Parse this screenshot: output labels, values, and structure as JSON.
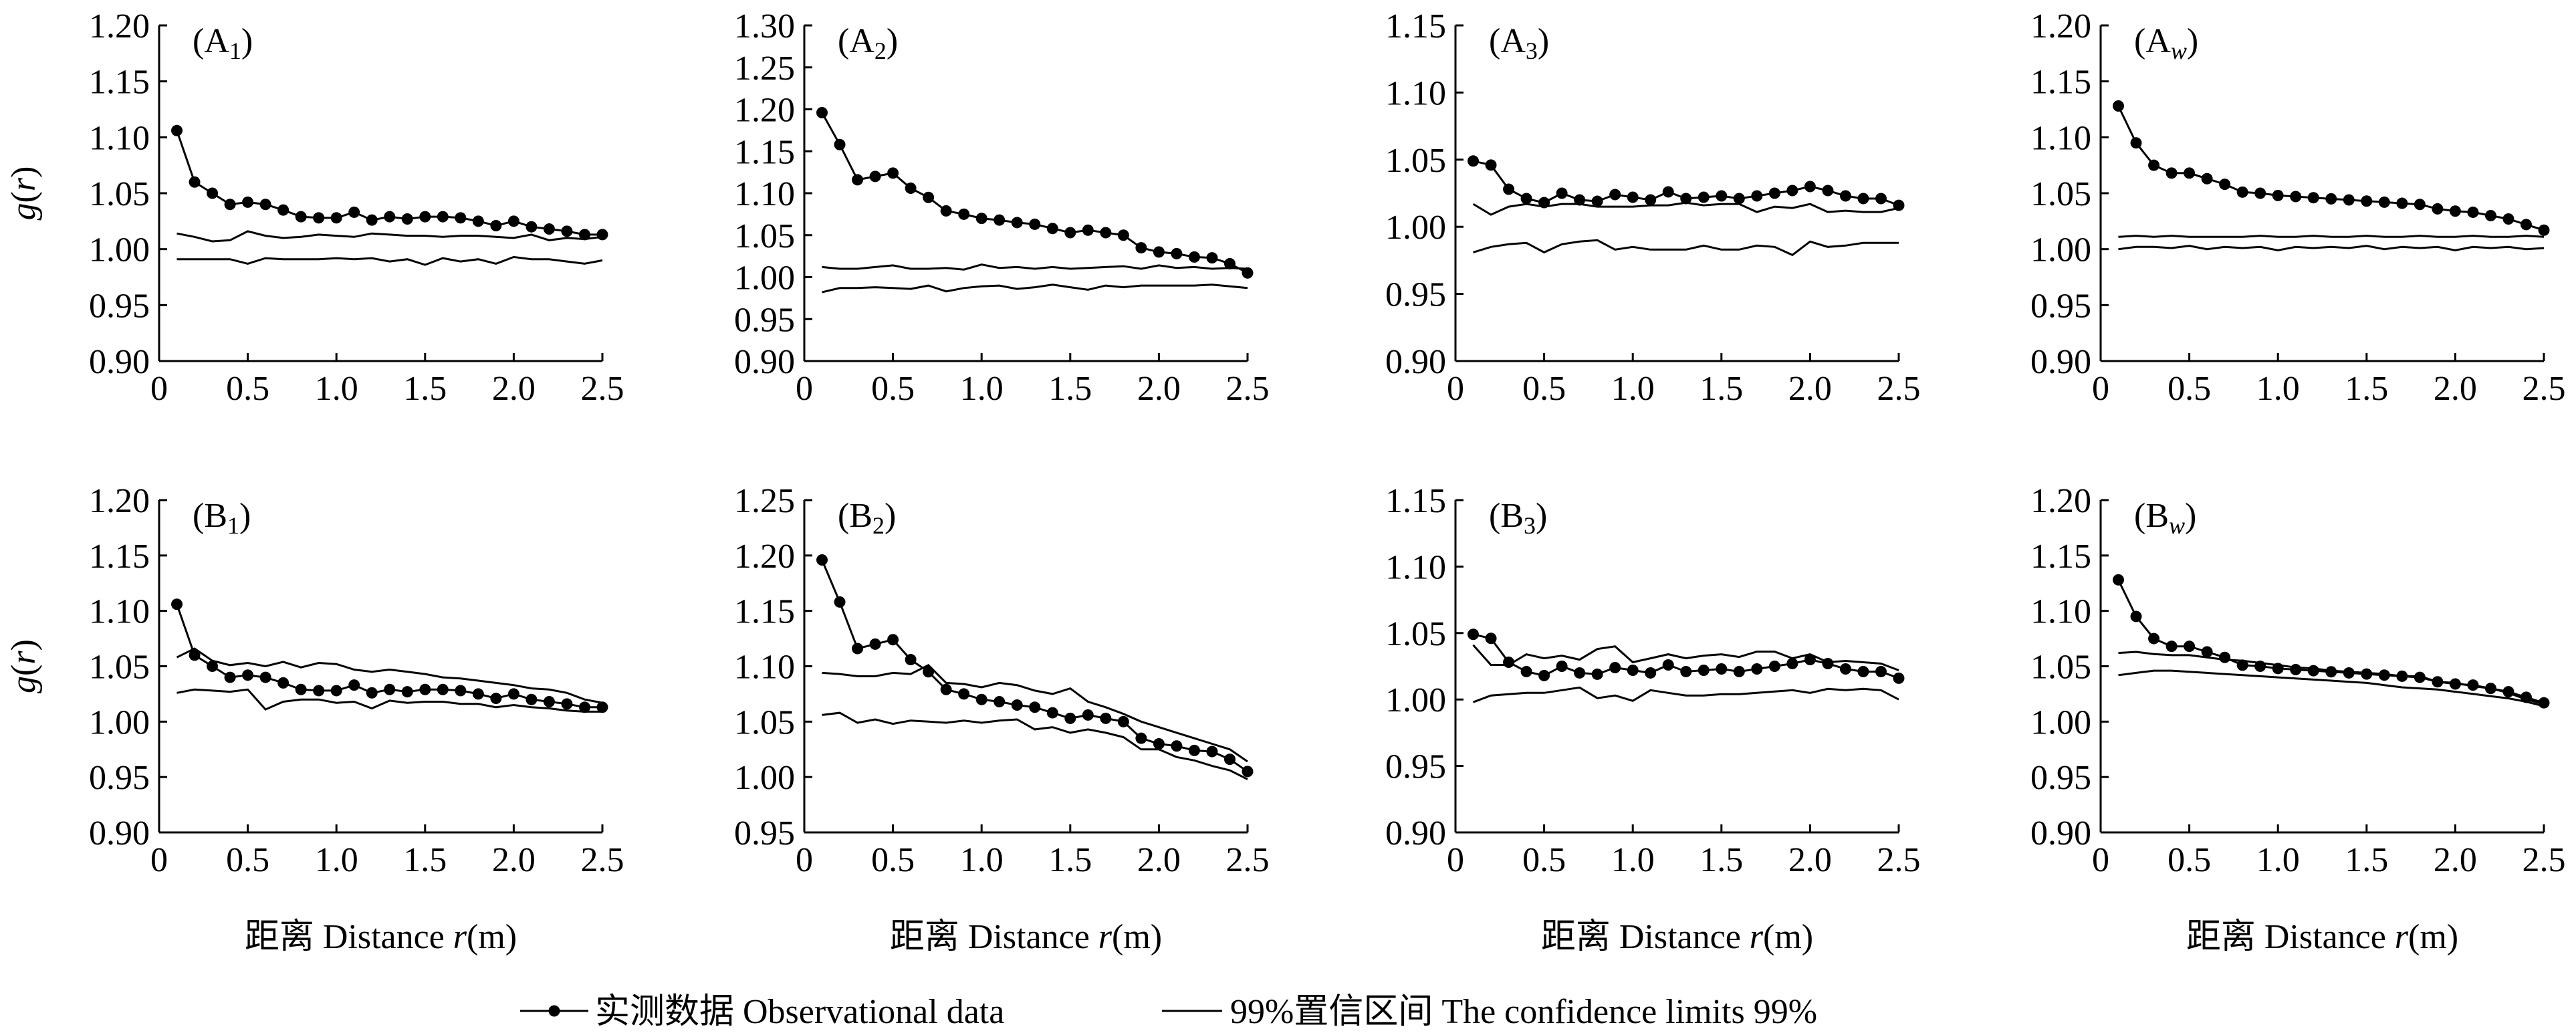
{
  "legend": {
    "observed": "实测数据 Observational data",
    "confidence": "99%置信区间 The confidence limits 99%"
  },
  "xlabel_prefix": "距离 Distance ",
  "xlabel_var": "r",
  "xlabel_unit": "(m)",
  "ylabel_var": "g",
  "ylabel_arg": "(r)",
  "chart_data": [
    {
      "type": "line",
      "panel_label": "A",
      "panel_sub": "1",
      "sub_italic": false,
      "xlim": [
        0,
        2.5
      ],
      "ylim": [
        0.9,
        1.2
      ],
      "xticks": [
        "0",
        "0.5",
        "1.0",
        "1.5",
        "2.0",
        "2.5"
      ],
      "yticks": [
        "0.90",
        "0.95",
        "1.00",
        "1.05",
        "1.10",
        "1.15",
        "1.20"
      ],
      "x": [
        0.1,
        0.2,
        0.3,
        0.4,
        0.5,
        0.6,
        0.7,
        0.8,
        0.9,
        1.0,
        1.1,
        1.2,
        1.3,
        1.4,
        1.5,
        1.6,
        1.7,
        1.8,
        1.9,
        2.0,
        2.1,
        2.2,
        2.3,
        2.4,
        2.5
      ],
      "observed": [
        1.106,
        1.06,
        1.05,
        1.04,
        1.042,
        1.04,
        1.035,
        1.029,
        1.028,
        1.028,
        1.033,
        1.026,
        1.029,
        1.027,
        1.029,
        1.029,
        1.028,
        1.025,
        1.021,
        1.025,
        1.02,
        1.018,
        1.016,
        1.013,
        1.013
      ],
      "upper": [
        1.014,
        1.011,
        1.007,
        1.008,
        1.016,
        1.012,
        1.01,
        1.011,
        1.013,
        1.012,
        1.011,
        1.014,
        1.013,
        1.012,
        1.012,
        1.011,
        1.012,
        1.012,
        1.011,
        1.01,
        1.013,
        1.008,
        1.01,
        1.009,
        1.011
      ],
      "lower": [
        0.991,
        0.991,
        0.991,
        0.991,
        0.987,
        0.992,
        0.991,
        0.991,
        0.991,
        0.992,
        0.991,
        0.992,
        0.989,
        0.991,
        0.986,
        0.992,
        0.989,
        0.991,
        0.987,
        0.993,
        0.991,
        0.991,
        0.989,
        0.987,
        0.99
      ]
    },
    {
      "type": "line",
      "panel_label": "A",
      "panel_sub": "2",
      "sub_italic": false,
      "xlim": [
        0,
        2.5
      ],
      "ylim": [
        0.9,
        1.3
      ],
      "xticks": [
        "0",
        "0.5",
        "1.0",
        "1.5",
        "2.0",
        "2.5"
      ],
      "yticks": [
        "0.90",
        "0.95",
        "1.00",
        "1.05",
        "1.10",
        "1.15",
        "1.20",
        "1.25",
        "1.30"
      ],
      "x": [
        0.1,
        0.2,
        0.3,
        0.4,
        0.5,
        0.6,
        0.7,
        0.8,
        0.9,
        1.0,
        1.1,
        1.2,
        1.3,
        1.4,
        1.5,
        1.6,
        1.7,
        1.8,
        1.9,
        2.0,
        2.1,
        2.2,
        2.3,
        2.4,
        2.5
      ],
      "observed": [
        1.196,
        1.158,
        1.116,
        1.12,
        1.124,
        1.106,
        1.095,
        1.079,
        1.075,
        1.07,
        1.068,
        1.065,
        1.063,
        1.058,
        1.053,
        1.056,
        1.053,
        1.05,
        1.035,
        1.03,
        1.028,
        1.024,
        1.023,
        1.016,
        1.005
      ],
      "upper": [
        1.012,
        1.01,
        1.01,
        1.012,
        1.014,
        1.01,
        1.01,
        1.011,
        1.009,
        1.015,
        1.011,
        1.012,
        1.01,
        1.012,
        1.01,
        1.011,
        1.012,
        1.013,
        1.01,
        1.014,
        1.011,
        1.012,
        1.01,
        1.011,
        1.01
      ],
      "lower": [
        0.982,
        0.987,
        0.987,
        0.988,
        0.987,
        0.986,
        0.99,
        0.983,
        0.987,
        0.989,
        0.99,
        0.986,
        0.988,
        0.991,
        0.988,
        0.985,
        0.99,
        0.988,
        0.99,
        0.99,
        0.99,
        0.99,
        0.991,
        0.989,
        0.987
      ]
    },
    {
      "type": "line",
      "panel_label": "A",
      "panel_sub": "3",
      "sub_italic": false,
      "xlim": [
        0,
        2.5
      ],
      "ylim": [
        0.9,
        1.15
      ],
      "xticks": [
        "0",
        "0.5",
        "1.0",
        "1.5",
        "2.0",
        "2.5"
      ],
      "yticks": [
        "0.90",
        "0.95",
        "1.00",
        "1.05",
        "1.10",
        "1.15"
      ],
      "x": [
        0.1,
        0.2,
        0.3,
        0.4,
        0.5,
        0.6,
        0.7,
        0.8,
        0.9,
        1.0,
        1.1,
        1.2,
        1.3,
        1.4,
        1.5,
        1.6,
        1.7,
        1.8,
        1.9,
        2.0,
        2.1,
        2.2,
        2.3,
        2.4,
        2.5
      ],
      "observed": [
        1.049,
        1.046,
        1.028,
        1.021,
        1.018,
        1.025,
        1.02,
        1.019,
        1.024,
        1.022,
        1.02,
        1.026,
        1.021,
        1.022,
        1.023,
        1.021,
        1.023,
        1.025,
        1.027,
        1.03,
        1.027,
        1.023,
        1.021,
        1.021,
        1.016
      ],
      "upper": [
        1.017,
        1.009,
        1.015,
        1.017,
        1.015,
        1.017,
        1.017,
        1.015,
        1.015,
        1.015,
        1.016,
        1.016,
        1.018,
        1.016,
        1.017,
        1.017,
        1.011,
        1.015,
        1.014,
        1.017,
        1.011,
        1.012,
        1.011,
        1.011,
        1.014
      ],
      "lower": [
        0.981,
        0.985,
        0.987,
        0.988,
        0.981,
        0.987,
        0.989,
        0.99,
        0.983,
        0.985,
        0.983,
        0.983,
        0.983,
        0.986,
        0.983,
        0.983,
        0.986,
        0.985,
        0.979,
        0.989,
        0.985,
        0.986,
        0.988,
        0.988,
        0.988
      ]
    },
    {
      "type": "line",
      "panel_label": "A",
      "panel_sub": "w",
      "sub_italic": true,
      "xlim": [
        0,
        2.5
      ],
      "ylim": [
        0.9,
        1.2
      ],
      "xticks": [
        "0",
        "0.5",
        "1.0",
        "1.5",
        "2.0",
        "2.5"
      ],
      "yticks": [
        "0.90",
        "0.95",
        "1.00",
        "1.05",
        "1.10",
        "1.15",
        "1.20"
      ],
      "x": [
        0.1,
        0.2,
        0.3,
        0.4,
        0.5,
        0.6,
        0.7,
        0.8,
        0.9,
        1.0,
        1.1,
        1.2,
        1.3,
        1.4,
        1.5,
        1.6,
        1.7,
        1.8,
        1.9,
        2.0,
        2.1,
        2.2,
        2.3,
        2.4,
        2.5
      ],
      "observed": [
        1.128,
        1.095,
        1.075,
        1.068,
        1.068,
        1.063,
        1.058,
        1.051,
        1.05,
        1.048,
        1.047,
        1.046,
        1.045,
        1.044,
        1.043,
        1.042,
        1.041,
        1.04,
        1.036,
        1.034,
        1.033,
        1.03,
        1.027,
        1.022,
        1.017
      ],
      "upper": [
        1.011,
        1.012,
        1.011,
        1.012,
        1.011,
        1.011,
        1.011,
        1.011,
        1.012,
        1.011,
        1.011,
        1.012,
        1.011,
        1.011,
        1.012,
        1.011,
        1.011,
        1.012,
        1.011,
        1.011,
        1.012,
        1.011,
        1.011,
        1.012,
        1.011
      ],
      "lower": [
        1.0,
        1.002,
        1.002,
        1.001,
        1.003,
        1.0,
        1.002,
        1.001,
        1.002,
        0.999,
        1.002,
        1.001,
        1.002,
        1.001,
        1.003,
        1.0,
        1.002,
        1.001,
        1.002,
        0.999,
        1.002,
        1.001,
        1.002,
        1.0,
        1.001
      ]
    },
    {
      "type": "line",
      "panel_label": "B",
      "panel_sub": "1",
      "sub_italic": false,
      "xlim": [
        0,
        2.5
      ],
      "ylim": [
        0.9,
        1.2
      ],
      "xticks": [
        "0",
        "0.5",
        "1.0",
        "1.5",
        "2.0",
        "2.5"
      ],
      "yticks": [
        "0.90",
        "0.95",
        "1.00",
        "1.05",
        "1.10",
        "1.15",
        "1.20"
      ],
      "x": [
        0.1,
        0.2,
        0.3,
        0.4,
        0.5,
        0.6,
        0.7,
        0.8,
        0.9,
        1.0,
        1.1,
        1.2,
        1.3,
        1.4,
        1.5,
        1.6,
        1.7,
        1.8,
        1.9,
        2.0,
        2.1,
        2.2,
        2.3,
        2.4,
        2.5
      ],
      "observed": [
        1.106,
        1.06,
        1.05,
        1.04,
        1.042,
        1.04,
        1.035,
        1.029,
        1.028,
        1.028,
        1.033,
        1.026,
        1.029,
        1.027,
        1.029,
        1.029,
        1.028,
        1.025,
        1.021,
        1.025,
        1.02,
        1.018,
        1.016,
        1.013,
        1.013
      ],
      "upper": [
        1.058,
        1.066,
        1.055,
        1.051,
        1.053,
        1.05,
        1.054,
        1.049,
        1.053,
        1.052,
        1.047,
        1.045,
        1.047,
        1.045,
        1.043,
        1.04,
        1.039,
        1.037,
        1.035,
        1.033,
        1.03,
        1.029,
        1.026,
        1.02,
        1.017
      ],
      "lower": [
        1.026,
        1.029,
        1.028,
        1.027,
        1.029,
        1.011,
        1.018,
        1.02,
        1.02,
        1.017,
        1.018,
        1.012,
        1.019,
        1.017,
        1.018,
        1.018,
        1.016,
        1.016,
        1.013,
        1.015,
        1.013,
        1.012,
        1.01,
        1.009,
        1.009
      ]
    },
    {
      "type": "line",
      "panel_label": "B",
      "panel_sub": "2",
      "sub_italic": false,
      "xlim": [
        0,
        2.5
      ],
      "ylim": [
        0.95,
        1.25
      ],
      "xticks": [
        "0",
        "0.5",
        "1.0",
        "1.5",
        "2.0",
        "2.5"
      ],
      "yticks": [
        "0.95",
        "1.00",
        "1.05",
        "1.10",
        "1.15",
        "1.20",
        "1.25"
      ],
      "x": [
        0.1,
        0.2,
        0.3,
        0.4,
        0.5,
        0.6,
        0.7,
        0.8,
        0.9,
        1.0,
        1.1,
        1.2,
        1.3,
        1.4,
        1.5,
        1.6,
        1.7,
        1.8,
        1.9,
        2.0,
        2.1,
        2.2,
        2.3,
        2.4,
        2.5
      ],
      "observed": [
        1.196,
        1.158,
        1.116,
        1.12,
        1.124,
        1.106,
        1.095,
        1.079,
        1.075,
        1.07,
        1.068,
        1.065,
        1.063,
        1.058,
        1.053,
        1.056,
        1.053,
        1.05,
        1.035,
        1.03,
        1.028,
        1.024,
        1.023,
        1.016,
        1.005
      ],
      "upper": [
        1.094,
        1.093,
        1.091,
        1.091,
        1.094,
        1.093,
        1.101,
        1.085,
        1.084,
        1.081,
        1.085,
        1.083,
        1.078,
        1.075,
        1.08,
        1.068,
        1.063,
        1.057,
        1.05,
        1.045,
        1.04,
        1.035,
        1.03,
        1.025,
        1.014
      ],
      "lower": [
        1.056,
        1.058,
        1.049,
        1.052,
        1.048,
        1.051,
        1.05,
        1.049,
        1.051,
        1.049,
        1.051,
        1.052,
        1.043,
        1.045,
        1.04,
        1.043,
        1.04,
        1.036,
        1.025,
        1.025,
        1.018,
        1.015,
        1.01,
        1.006,
        0.998
      ]
    },
    {
      "type": "line",
      "panel_label": "B",
      "panel_sub": "3",
      "sub_italic": false,
      "xlim": [
        0,
        2.5
      ],
      "ylim": [
        0.9,
        1.15
      ],
      "xticks": [
        "0",
        "0.5",
        "1.0",
        "1.5",
        "2.0",
        "2.5"
      ],
      "yticks": [
        "0.90",
        "0.95",
        "1.00",
        "1.05",
        "1.10",
        "1.15"
      ],
      "x": [
        0.1,
        0.2,
        0.3,
        0.4,
        0.5,
        0.6,
        0.7,
        0.8,
        0.9,
        1.0,
        1.1,
        1.2,
        1.3,
        1.4,
        1.5,
        1.6,
        1.7,
        1.8,
        1.9,
        2.0,
        2.1,
        2.2,
        2.3,
        2.4,
        2.5
      ],
      "observed": [
        1.049,
        1.046,
        1.028,
        1.021,
        1.018,
        1.025,
        1.02,
        1.019,
        1.024,
        1.022,
        1.02,
        1.026,
        1.021,
        1.022,
        1.023,
        1.021,
        1.023,
        1.025,
        1.027,
        1.03,
        1.027,
        1.023,
        1.021,
        1.021,
        1.016
      ],
      "upper": [
        1.041,
        1.026,
        1.026,
        1.034,
        1.031,
        1.033,
        1.03,
        1.038,
        1.04,
        1.028,
        1.031,
        1.034,
        1.031,
        1.033,
        1.034,
        1.032,
        1.036,
        1.036,
        1.031,
        1.034,
        1.028,
        1.029,
        1.028,
        1.027,
        1.022
      ],
      "lower": [
        0.998,
        1.003,
        1.004,
        1.005,
        1.005,
        1.007,
        1.009,
        1.001,
        1.003,
        0.999,
        1.007,
        1.005,
        1.003,
        1.003,
        1.004,
        1.004,
        1.005,
        1.006,
        1.007,
        1.005,
        1.008,
        1.007,
        1.008,
        1.007,
        1.0
      ]
    },
    {
      "type": "line",
      "panel_label": "B",
      "panel_sub": "w",
      "sub_italic": true,
      "xlim": [
        0,
        2.5
      ],
      "ylim": [
        0.9,
        1.2
      ],
      "xticks": [
        "0",
        "0.5",
        "1.0",
        "1.5",
        "2.0",
        "2.5"
      ],
      "yticks": [
        "0.90",
        "0.95",
        "1.00",
        "1.05",
        "1.10",
        "1.15",
        "1.20"
      ],
      "x": [
        0.1,
        0.2,
        0.3,
        0.4,
        0.5,
        0.6,
        0.7,
        0.8,
        0.9,
        1.0,
        1.1,
        1.2,
        1.3,
        1.4,
        1.5,
        1.6,
        1.7,
        1.8,
        1.9,
        2.0,
        2.1,
        2.2,
        2.3,
        2.4,
        2.5
      ],
      "observed": [
        1.128,
        1.095,
        1.075,
        1.068,
        1.068,
        1.063,
        1.058,
        1.051,
        1.05,
        1.048,
        1.047,
        1.046,
        1.045,
        1.044,
        1.043,
        1.042,
        1.041,
        1.04,
        1.036,
        1.034,
        1.033,
        1.03,
        1.027,
        1.022,
        1.017
      ],
      "upper": [
        1.062,
        1.063,
        1.061,
        1.06,
        1.06,
        1.058,
        1.056,
        1.055,
        1.053,
        1.051,
        1.049,
        1.048,
        1.046,
        1.045,
        1.044,
        1.043,
        1.041,
        1.041,
        1.036,
        1.035,
        1.032,
        1.03,
        1.026,
        1.02,
        1.016
      ],
      "lower": [
        1.042,
        1.044,
        1.046,
        1.046,
        1.045,
        1.044,
        1.043,
        1.042,
        1.041,
        1.04,
        1.039,
        1.038,
        1.037,
        1.036,
        1.035,
        1.033,
        1.031,
        1.03,
        1.029,
        1.027,
        1.025,
        1.023,
        1.021,
        1.018,
        1.014
      ]
    }
  ]
}
